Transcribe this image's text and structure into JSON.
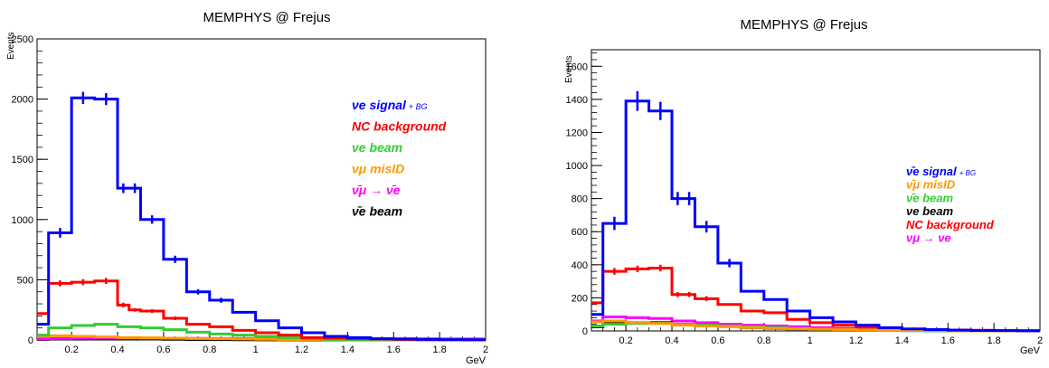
{
  "colors": {
    "signal": "#0000ff",
    "nc": "#ff0000",
    "nue_beam": "#33cc33",
    "numu_misid": "#ff9900",
    "osc": "#ff00ff",
    "anu_beam": "#000000"
  },
  "chart_data": [
    {
      "type": "line",
      "title": "MEMPHYS @ Frejus",
      "xlabel": "GeV",
      "ylabel": "Events",
      "xlim": [
        0.05,
        2.0
      ],
      "ylim": [
        0,
        2500
      ],
      "xticks": [
        0.2,
        0.4,
        0.6,
        0.8,
        1,
        1.2,
        1.4,
        1.6,
        1.8,
        2
      ],
      "xtick_labels": [
        "0.2",
        "0.4",
        "0.6",
        "0.8",
        "1",
        "1.2",
        "1.4",
        "1.6",
        "1.8",
        "2"
      ],
      "yticks": [
        0,
        500,
        1000,
        1500,
        2000,
        2500
      ],
      "ytick_labels": [
        "0",
        "500",
        "1000",
        "1500",
        "2000",
        "2500"
      ],
      "grid": false,
      "legend_position": "top-right",
      "bin_edges": [
        0.05,
        0.1,
        0.2,
        0.3,
        0.4,
        0.45,
        0.5,
        0.6,
        0.7,
        0.8,
        0.9,
        1.0,
        1.1,
        1.2,
        1.3,
        1.4,
        1.5,
        1.6,
        1.7,
        1.8,
        1.9,
        2.0
      ],
      "series": [
        {
          "key": "signal",
          "name": "νe signal",
          "name_suffix": "+ BG",
          "bar_over": false,
          "color_key": "signal",
          "values": [
            130,
            890,
            2010,
            2000,
            1260,
            1260,
            1000,
            670,
            400,
            330,
            230,
            160,
            100,
            60,
            30,
            20,
            10,
            8,
            5,
            3,
            2
          ],
          "errors": [
            0,
            40,
            50,
            50,
            40,
            40,
            35,
            30,
            22,
            20,
            0,
            0,
            0,
            0,
            0,
            0,
            0,
            0,
            0,
            0,
            0
          ]
        },
        {
          "key": "nc",
          "name": "NC background",
          "name_suffix": "",
          "bar_over": false,
          "color_key": "nc",
          "values": [
            220,
            470,
            480,
            490,
            290,
            250,
            240,
            180,
            130,
            110,
            80,
            60,
            40,
            20,
            15,
            10,
            8,
            5,
            3,
            2,
            1
          ],
          "errors": [
            0,
            25,
            25,
            25,
            20,
            15,
            15,
            15,
            0,
            0,
            0,
            0,
            0,
            0,
            0,
            0,
            0,
            0,
            0,
            0,
            0
          ]
        },
        {
          "key": "nue_beam",
          "name": "νe beam",
          "name_suffix": "",
          "bar_over": false,
          "color_key": "nue_beam",
          "values": [
            40,
            100,
            120,
            130,
            110,
            110,
            100,
            85,
            65,
            50,
            40,
            30,
            20,
            10,
            5,
            3,
            2,
            1,
            1,
            0,
            0
          ],
          "errors": [
            0,
            0,
            0,
            10,
            0,
            0,
            0,
            0,
            0,
            0,
            0,
            0,
            0,
            0,
            0,
            0,
            0,
            0,
            0,
            0,
            0
          ]
        },
        {
          "key": "numu_misid",
          "name": "νμ misID",
          "name_suffix": "",
          "bar_over": false,
          "color_key": "numu_misid",
          "values": [
            30,
            35,
            30,
            25,
            20,
            20,
            18,
            15,
            12,
            10,
            8,
            6,
            4,
            3,
            2,
            1,
            1,
            0,
            0,
            0,
            0
          ],
          "errors": [
            0,
            0,
            0,
            0,
            0,
            0,
            0,
            0,
            0,
            0,
            0,
            0,
            0,
            0,
            0,
            0,
            0,
            0,
            0,
            0,
            0
          ]
        },
        {
          "key": "osc",
          "name": "ν̄μ → ν̄e",
          "name_suffix": "",
          "bar_over": true,
          "color_key": "osc",
          "values": [
            8,
            12,
            15,
            15,
            15,
            15,
            14,
            14,
            13,
            12,
            12,
            11,
            11,
            10,
            10,
            10,
            9,
            9,
            9,
            8,
            8
          ],
          "errors": [
            0,
            0,
            0,
            0,
            0,
            0,
            0,
            0,
            0,
            0,
            0,
            0,
            0,
            0,
            0,
            0,
            0,
            0,
            0,
            0,
            0
          ]
        },
        {
          "key": "anu_beam",
          "name": "ν̄e beam",
          "name_suffix": "",
          "bar_over": true,
          "color_key": "anu_beam",
          "values": [
            5,
            10,
            12,
            12,
            10,
            10,
            8,
            6,
            4,
            3,
            2,
            1,
            1,
            0,
            0,
            0,
            0,
            0,
            0,
            0,
            0
          ],
          "errors": [
            0,
            0,
            0,
            0,
            0,
            0,
            0,
            0,
            0,
            0,
            0,
            0,
            0,
            0,
            0,
            0,
            0,
            0,
            0,
            0,
            0
          ]
        }
      ]
    },
    {
      "type": "line",
      "title": "MEMPHYS @ Frejus",
      "xlabel": "GeV",
      "ylabel": "Events",
      "xlim": [
        0.05,
        2.0
      ],
      "ylim": [
        0,
        1700
      ],
      "xticks": [
        0.2,
        0.4,
        0.6,
        0.8,
        1,
        1.2,
        1.4,
        1.6,
        1.8,
        2
      ],
      "xtick_labels": [
        "0.2",
        "0.4",
        "0.6",
        "0.8",
        "1",
        "1.2",
        "1.4",
        "1.6",
        "1.8",
        "2"
      ],
      "yticks": [
        0,
        200,
        400,
        600,
        800,
        1000,
        1200,
        1400,
        1600
      ],
      "ytick_labels": [
        "0",
        "200",
        "400",
        "600",
        "800",
        "1000",
        "1200",
        "1400",
        "1600"
      ],
      "grid": false,
      "legend_position": "right",
      "bin_edges": [
        0.05,
        0.1,
        0.2,
        0.3,
        0.4,
        0.45,
        0.5,
        0.6,
        0.7,
        0.8,
        0.9,
        1.0,
        1.1,
        1.2,
        1.3,
        1.4,
        1.5,
        1.6,
        1.7,
        1.8,
        1.9,
        2.0
      ],
      "series": [
        {
          "key": "signal",
          "name": "ν̄e signal",
          "name_suffix": "+ BG",
          "bar_over": true,
          "color_key": "signal",
          "values": [
            100,
            650,
            1390,
            1330,
            800,
            800,
            630,
            410,
            240,
            190,
            120,
            80,
            55,
            35,
            20,
            12,
            8,
            5,
            3,
            2,
            1
          ],
          "errors": [
            0,
            40,
            60,
            55,
            40,
            40,
            35,
            25,
            0,
            0,
            0,
            0,
            0,
            0,
            0,
            0,
            0,
            0,
            0,
            0,
            0
          ]
        },
        {
          "key": "numu_misid",
          "name": "ν̄μ misID",
          "name_suffix": "",
          "bar_over": true,
          "color_key": "numu_misid",
          "values": [
            55,
            60,
            50,
            45,
            35,
            35,
            30,
            25,
            20,
            15,
            12,
            10,
            8,
            6,
            4,
            3,
            2,
            1,
            1,
            0,
            0
          ],
          "errors": [
            0,
            0,
            0,
            0,
            0,
            0,
            0,
            0,
            0,
            0,
            0,
            0,
            0,
            0,
            0,
            0,
            0,
            0,
            0,
            0,
            0
          ]
        },
        {
          "key": "nue_beam",
          "name": "ν̄e beam",
          "name_suffix": "",
          "bar_over": true,
          "color_key": "nue_beam",
          "values": [
            30,
            40,
            45,
            45,
            40,
            40,
            35,
            30,
            25,
            20,
            15,
            10,
            8,
            5,
            3,
            2,
            1,
            1,
            0,
            0,
            0
          ],
          "errors": [
            0,
            0,
            0,
            0,
            0,
            0,
            0,
            0,
            0,
            0,
            0,
            0,
            0,
            0,
            0,
            0,
            0,
            0,
            0,
            0,
            0
          ]
        },
        {
          "key": "anu_beam",
          "name": "νe beam",
          "name_suffix": "",
          "bar_over": false,
          "color_key": "anu_beam",
          "values": [
            25,
            45,
            50,
            50,
            40,
            40,
            35,
            30,
            20,
            15,
            12,
            8,
            6,
            4,
            3,
            2,
            1,
            1,
            0,
            0,
            0
          ],
          "errors": [
            0,
            0,
            0,
            0,
            0,
            0,
            0,
            0,
            0,
            0,
            0,
            0,
            0,
            0,
            0,
            0,
            0,
            0,
            0,
            0,
            0
          ]
        },
        {
          "key": "nc",
          "name": "NC background",
          "name_suffix": "",
          "bar_over": false,
          "color_key": "nc",
          "values": [
            170,
            360,
            375,
            380,
            220,
            220,
            195,
            160,
            120,
            110,
            70,
            50,
            35,
            20,
            15,
            10,
            8,
            5,
            3,
            2,
            1
          ],
          "errors": [
            0,
            20,
            20,
            20,
            15,
            15,
            15,
            0,
            0,
            0,
            0,
            0,
            0,
            0,
            0,
            0,
            0,
            0,
            0,
            0,
            0
          ]
        },
        {
          "key": "osc",
          "name": "νμ → νe",
          "name_suffix": "",
          "bar_over": false,
          "color_key": "osc",
          "values": [
            60,
            85,
            80,
            75,
            60,
            60,
            50,
            40,
            35,
            30,
            25,
            20,
            15,
            12,
            10,
            8,
            6,
            5,
            4,
            3,
            2
          ],
          "errors": [
            0,
            0,
            0,
            0,
            0,
            0,
            0,
            0,
            0,
            0,
            0,
            0,
            0,
            0,
            0,
            0,
            0,
            0,
            0,
            0,
            0
          ]
        }
      ]
    }
  ]
}
